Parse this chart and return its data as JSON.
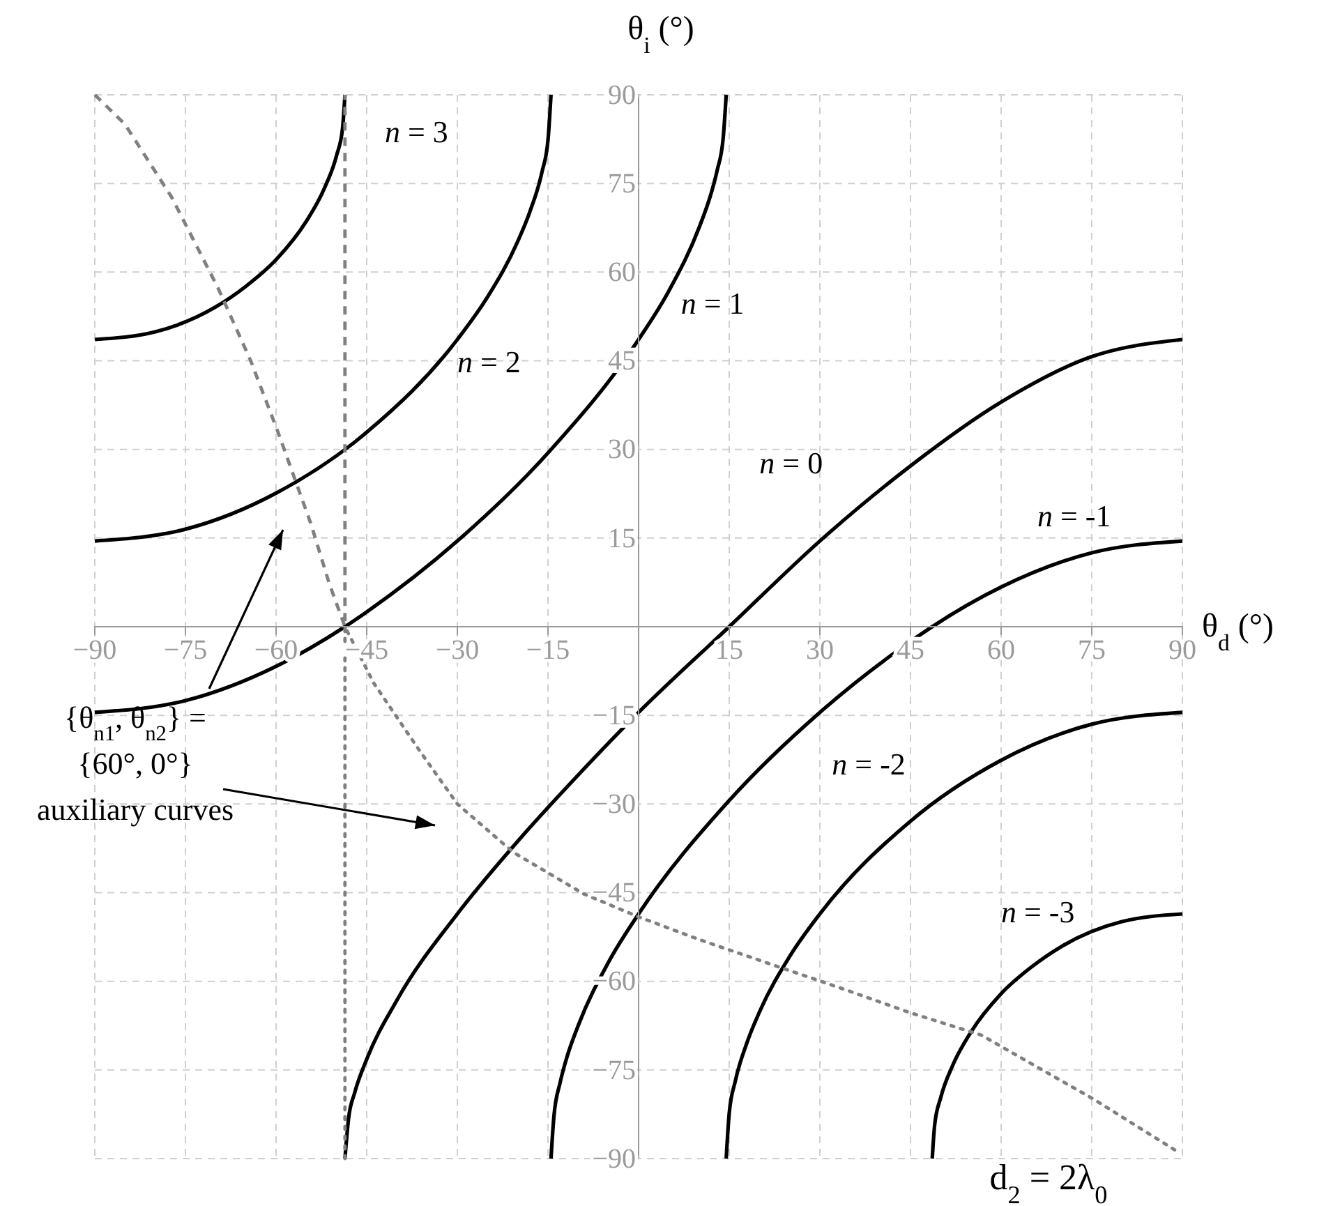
{
  "chart_data": {
    "type": "line",
    "xlabel": "θ$_{d}$ (°)",
    "ylabel": "θ$_{i}$ (°)",
    "xlim": [
      -90,
      90
    ],
    "ylim": [
      -90,
      90
    ],
    "xticks": [
      {
        "value": -90,
        "label": "−90"
      },
      {
        "value": -75,
        "label": "−75"
      },
      {
        "value": -60,
        "label": "−60"
      },
      {
        "value": -45,
        "label": "−45"
      },
      {
        "value": -30,
        "label": "−30"
      },
      {
        "value": -15,
        "label": "−15"
      },
      15,
      30,
      45,
      60,
      75,
      90
    ],
    "yticks": [
      {
        "value": -90,
        "label": "−90"
      },
      {
        "value": -75,
        "label": "−75"
      },
      {
        "value": -60,
        "label": "−60"
      },
      {
        "value": -45,
        "label": "−45"
      },
      {
        "value": -30,
        "label": "−30"
      },
      {
        "value": -15,
        "label": "−15"
      },
      15,
      30,
      45,
      60,
      75,
      90
    ],
    "grid": true,
    "annotations": [
      "{θ$_{n1}$, θ$_{n2}$} =",
      "{60°, 0°}",
      "auxiliary curves",
      "d$_{2}$ = 2λ$_{0}$"
    ],
    "series": [
      {
        "name": "n = 3",
        "color": "#000000",
        "line_style": "solid",
        "x": [
          -90,
          -80,
          -70,
          -65,
          -60,
          -55,
          -52,
          -50,
          -49,
          -48.6
        ],
        "values": [
          48.6,
          49.9,
          54.1,
          57.6,
          62.1,
          68.6,
          74.2,
          79.7,
          84.3,
          90
        ]
      },
      {
        "name": "n = 2",
        "color": "#000000",
        "line_style": "solid",
        "x": [
          -90,
          -75,
          -60,
          -45,
          -30,
          -25,
          -20,
          -18,
          -16,
          -15,
          -14.5
        ],
        "values": [
          14.5,
          16.5,
          22.6,
          32.9,
          48.6,
          55.8,
          65.2,
          70.2,
          76.9,
          82.3,
          90
        ]
      },
      {
        "name": "n = 1",
        "color": "#000000",
        "line_style": "solid",
        "x": [
          -90,
          -75,
          -60,
          -48.6,
          -45,
          -30,
          -15,
          0,
          5,
          10,
          12,
          13,
          14,
          14.5
        ],
        "values": [
          -14.5,
          -12.5,
          -6.7,
          0,
          2.5,
          14.5,
          29.4,
          48.6,
          56.8,
          67.5,
          73.3,
          77.2,
          82.7,
          90
        ]
      },
      {
        "name": "n = 0",
        "color": "#000000",
        "line_style": "solid",
        "x": [
          -48.6,
          -48,
          -47,
          -45,
          -40,
          -30,
          -20,
          -10,
          0,
          15,
          30,
          45,
          60,
          75,
          90
        ],
        "values": [
          -90,
          -83.2,
          -78.9,
          -73.2,
          -63.2,
          -48.6,
          -36.3,
          -25.1,
          -14.5,
          0,
          14.5,
          27.2,
          38.0,
          45.7,
          48.6
        ]
      },
      {
        "name": "n = -1",
        "color": "#000000",
        "line_style": "solid",
        "x": [
          -14.5,
          -14,
          -13,
          -12,
          -10,
          -5,
          0,
          15,
          30,
          45,
          48.6,
          60,
          75,
          90
        ],
        "values": [
          -90,
          -82.7,
          -77.2,
          -73.3,
          -67.5,
          -56.8,
          -48.6,
          -29.4,
          -14.5,
          -2.5,
          0,
          6.7,
          12.5,
          14.5
        ]
      },
      {
        "name": "n = -2",
        "color": "#000000",
        "line_style": "solid",
        "x": [
          14.5,
          15,
          16,
          18,
          20,
          25,
          30,
          45,
          60,
          75,
          90
        ],
        "values": [
          -90,
          -82.3,
          -76.9,
          -70.2,
          -65.2,
          -55.8,
          -48.6,
          -32.9,
          -22.6,
          -16.5,
          -14.5
        ]
      },
      {
        "name": "n = -3",
        "color": "#000000",
        "line_style": "solid",
        "x": [
          48.6,
          49,
          50,
          52,
          55,
          60,
          65,
          70,
          80,
          90
        ],
        "values": [
          -90,
          -84.3,
          -79.7,
          -74.2,
          -68.6,
          -62.1,
          -57.6,
          -54.1,
          -49.9,
          -48.6
        ]
      },
      {
        "color": "#808080",
        "line_style": "dashed",
        "x": [
          -90,
          -85,
          -77.3,
          -69.6,
          -64.2,
          -59.6,
          -56.9,
          -54.2,
          -51.2,
          -48.6,
          -48.6
        ],
        "values": [
          90,
          85,
          72.7,
          57.3,
          45,
          32.7,
          25,
          17.3,
          7.3,
          0,
          90
        ]
      },
      {
        "color": "#808080",
        "line_style": "dotted",
        "x": [
          -48.6,
          -48.6,
          -43.8,
          -36.1,
          -30,
          -20.7,
          -9.1,
          0,
          10.2,
          23.3,
          33.6,
          44.9,
          56.7,
          75.4,
          89
        ],
        "values": [
          -90,
          0,
          -9.6,
          -21.2,
          -30,
          -38.2,
          -45.2,
          -49.1,
          -53,
          -57.6,
          -61.2,
          -65.3,
          -69.1,
          -80,
          -88.7
        ]
      }
    ]
  }
}
